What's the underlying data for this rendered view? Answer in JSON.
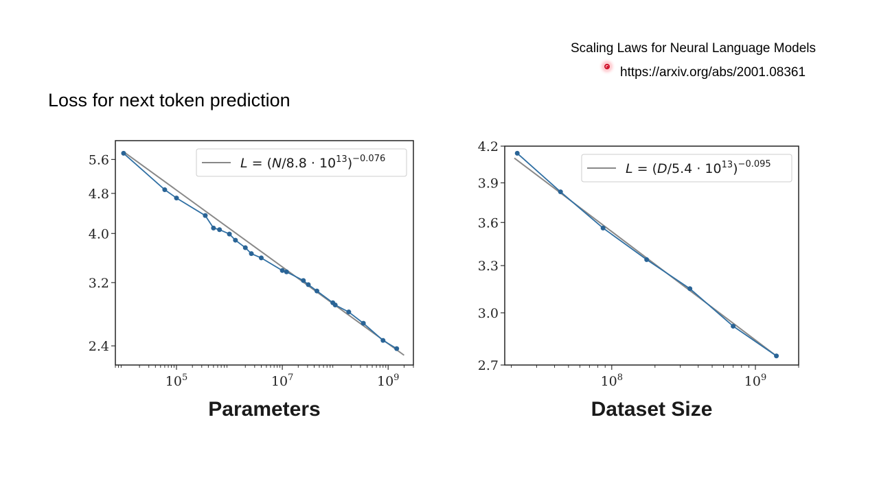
{
  "reference": {
    "title": "Scaling Laws for Neural Language Models",
    "url": "https://arxiv.org/abs/2001.08361"
  },
  "slide": {
    "heading": "Loss for next token prediction"
  },
  "chart_data": [
    {
      "type": "line",
      "xlabel": "Parameters",
      "ylabel": "",
      "xscale": "log",
      "yscale": "log",
      "xlim": [
        7000,
        3000000000
      ],
      "ylim": [
        2.2,
        6.1
      ],
      "xticks": [
        100000,
        10000000,
        1000000000
      ],
      "xtick_labels": [
        "10^5",
        "10^7",
        "10^9"
      ],
      "yticks": [
        2.4,
        3.2,
        4.0,
        4.8,
        5.6
      ],
      "ytick_labels": [
        "2.4",
        "3.2",
        "4.0",
        "4.8",
        "5.6"
      ],
      "grid": false,
      "legend_position": "top-right",
      "legend": {
        "lhs": "L",
        "var": "N",
        "coef": "8.8",
        "exp": "13",
        "power": "−0.076"
      },
      "fit": {
        "x": [
          10000,
          2000000000
        ],
        "y": [
          5.8,
          2.3
        ]
      },
      "series": [
        {
          "x": [
            10000,
            60000,
            100000,
            350000,
            500000,
            650000,
            1000000,
            1300000,
            2000000,
            2600000,
            4000000,
            10000000,
            12000000,
            25000000,
            31000000,
            45000000,
            90000000,
            100000000,
            180000000,
            340000000,
            800000000,
            1450000000
          ],
          "y": [
            5.76,
            4.88,
            4.7,
            4.34,
            4.1,
            4.07,
            3.99,
            3.88,
            3.75,
            3.65,
            3.58,
            3.38,
            3.36,
            3.23,
            3.17,
            3.08,
            2.92,
            2.89,
            2.8,
            2.66,
            2.46,
            2.37
          ]
        }
      ]
    },
    {
      "type": "line",
      "xlabel": "Dataset Size",
      "ylabel": "",
      "xscale": "log",
      "yscale": "log",
      "xlim": [
        18000000,
        2000000000
      ],
      "ylim": [
        2.7,
        4.2
      ],
      "xticks": [
        100000000,
        1000000000
      ],
      "xtick_labels": [
        "10^8",
        "10^9"
      ],
      "yticks": [
        2.7,
        3.0,
        3.3,
        3.6,
        3.9,
        4.2
      ],
      "ytick_labels": [
        "2.7",
        "3.0",
        "3.3",
        "3.6",
        "3.9",
        "4.2"
      ],
      "grid": false,
      "legend_position": "top-right",
      "legend": {
        "lhs": "L",
        "var": "D",
        "coef": "5.4",
        "exp": "13",
        "power": "−0.095"
      },
      "fit": {
        "x": [
          21000000,
          1400000000
        ],
        "y": [
          4.1,
          2.75
        ]
      },
      "series": [
        {
          "x": [
            22000000,
            44000000,
            87000000,
            175000000,
            350000000,
            700000000,
            1400000000
          ],
          "y": [
            4.14,
            3.83,
            3.56,
            3.34,
            3.15,
            2.92,
            2.75
          ]
        }
      ]
    }
  ]
}
